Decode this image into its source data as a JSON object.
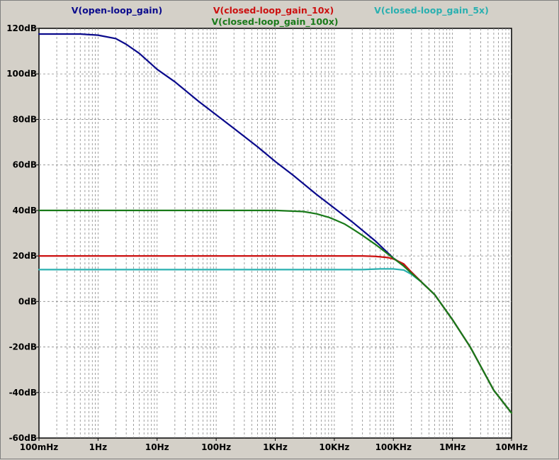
{
  "chart_data": {
    "type": "line",
    "x_scale": "log",
    "grid": true,
    "legend_position": "top",
    "xlim": [
      0.1,
      10000000
    ],
    "ylim": [
      -60,
      120
    ],
    "x_ticks": [
      {
        "value": 0.1,
        "label": "100mHz"
      },
      {
        "value": 1,
        "label": "1Hz"
      },
      {
        "value": 10,
        "label": "10Hz"
      },
      {
        "value": 100,
        "label": "100Hz"
      },
      {
        "value": 1000,
        "label": "1KHz"
      },
      {
        "value": 10000,
        "label": "10KHz"
      },
      {
        "value": 100000,
        "label": "100KHz"
      },
      {
        "value": 1000000,
        "label": "1MHz"
      },
      {
        "value": 10000000,
        "label": "10MHz"
      }
    ],
    "y_ticks": [
      {
        "value": 120,
        "label": "120dB"
      },
      {
        "value": 100,
        "label": "100dB"
      },
      {
        "value": 80,
        "label": "80dB"
      },
      {
        "value": 60,
        "label": "60dB"
      },
      {
        "value": 40,
        "label": "40dB"
      },
      {
        "value": 20,
        "label": "20dB"
      },
      {
        "value": 0,
        "label": "0dB"
      },
      {
        "value": -20,
        "label": "-20dB"
      },
      {
        "value": -40,
        "label": "-40dB"
      },
      {
        "value": -60,
        "label": "-60dB"
      }
    ],
    "series": [
      {
        "name": "V(open-loop_gain)",
        "color": "#0a0a8c",
        "x": [
          0.1,
          0.5,
          1,
          2,
          3,
          5,
          10,
          20,
          50,
          100,
          200,
          500,
          1000,
          2000,
          5000,
          10000,
          20000,
          50000,
          100000,
          150000,
          200000,
          300000,
          500000,
          1000000,
          2000000,
          5000000,
          10000000
        ],
        "y": [
          117.5,
          117.5,
          117,
          115.5,
          113,
          109,
          102,
          96.5,
          88,
          82,
          76,
          68,
          61.5,
          55.5,
          47,
          41,
          35,
          26.5,
          19,
          16,
          13,
          8.5,
          3,
          -8,
          -20,
          -39,
          -49
        ]
      },
      {
        "name": "V(closed-loop_gain_10x)",
        "color": "#cc1010",
        "x": [
          0.1,
          10,
          1000,
          10000,
          30000,
          50000,
          80000,
          100000,
          150000,
          200000,
          300000,
          500000,
          1000000,
          2000000,
          5000000,
          10000000
        ],
        "y": [
          20,
          20,
          20,
          20,
          20,
          19.8,
          19.3,
          18.7,
          16.5,
          13,
          8.5,
          3,
          -8,
          -20,
          -39,
          -49
        ]
      },
      {
        "name": "V(closed-loop_gain_100x)",
        "color": "#1a7a1a",
        "x": [
          0.1,
          100,
          1000,
          3000,
          5000,
          8000,
          10000,
          15000,
          20000,
          30000,
          50000,
          100000,
          150000,
          200000,
          300000,
          500000,
          1000000,
          2000000,
          5000000,
          10000000
        ],
        "y": [
          40,
          40,
          40,
          39.5,
          38.5,
          37,
          36,
          34,
          32,
          29,
          25,
          19,
          15.5,
          12.5,
          8.5,
          3,
          -8,
          -20,
          -39,
          -49
        ]
      },
      {
        "name": "V(closed-loop_gain_5x)",
        "color": "#2ab0b0",
        "x": [
          0.1,
          10,
          1000,
          10000,
          30000,
          60000,
          100000,
          150000,
          200000,
          300000,
          500000,
          1000000,
          2000000,
          5000000,
          10000000
        ],
        "y": [
          14,
          14,
          14,
          14,
          14,
          14.3,
          14.3,
          13.8,
          12,
          8.5,
          3,
          -8,
          -20,
          -39,
          -49
        ]
      }
    ]
  }
}
